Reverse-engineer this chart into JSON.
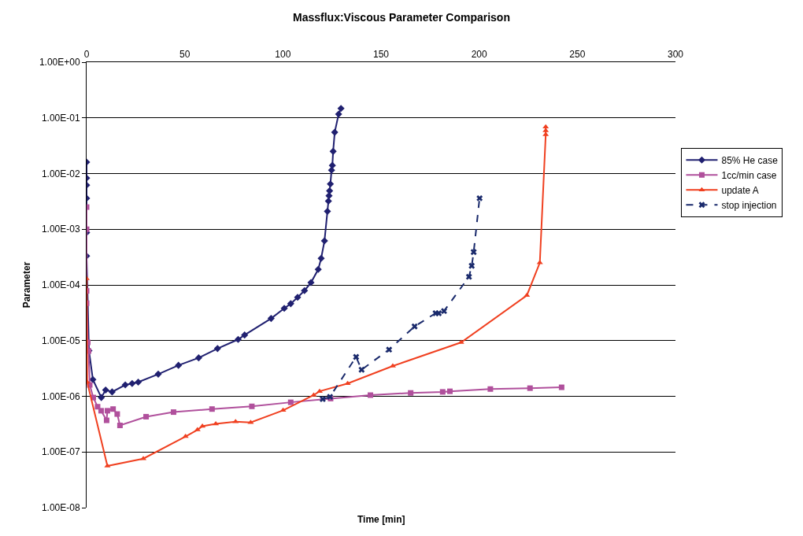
{
  "chart_data": {
    "type": "line",
    "title": "Massflux:Viscous Parameter Comparison",
    "xlabel": "Time [min]",
    "ylabel": "Parameter",
    "xlim": [
      0,
      300
    ],
    "xticks": [
      0,
      50,
      100,
      150,
      200,
      250,
      300
    ],
    "ylim": [
      1e-08,
      1
    ],
    "log": true,
    "yticks": [
      {
        "value": 1e-08,
        "label": "1.00E-08"
      },
      {
        "value": 1e-07,
        "label": "1.00E-07"
      },
      {
        "value": 1e-06,
        "label": "1.00E-06"
      },
      {
        "value": 1e-05,
        "label": "1.00E-05"
      },
      {
        "value": 0.0001,
        "label": "1.00E-04"
      },
      {
        "value": 0.001,
        "label": "1.00E-03"
      },
      {
        "value": 0.01,
        "label": "1.00E-02"
      },
      {
        "value": 0.1,
        "label": "1.00E-01"
      },
      {
        "value": 1,
        "label": "1.00E+00"
      }
    ],
    "grid": "y",
    "legend": "right",
    "series": [
      {
        "name": "85% He case",
        "color": "#202070",
        "marker": "diamond",
        "line_style": "solid",
        "x": [
          0,
          0,
          0,
          0,
          0,
          0,
          1.2,
          3.2,
          7.5,
          9.7,
          13,
          19.7,
          23.2,
          26.3,
          36.5,
          46.8,
          57.1,
          66.7,
          77.2,
          80.5,
          94,
          100.7,
          104,
          107.5,
          111,
          114.3,
          118,
          119.5,
          121.2,
          122.7,
          123.2,
          123.5,
          123.8,
          124.2,
          124.8,
          125.2,
          125.6,
          126.4,
          128.4,
          129.6
        ],
        "values": [
          0.016,
          0.0083,
          0.0062,
          0.0036,
          0.00087,
          0.00033,
          6.6e-06,
          2e-06,
          9.5e-07,
          1.3e-06,
          1.2e-06,
          1.6e-06,
          1.7e-06,
          1.8e-06,
          2.5e-06,
          3.6e-06,
          4.9e-06,
          7.2e-06,
          1.05e-05,
          1.26e-05,
          2.5e-05,
          3.8e-05,
          4.6e-05,
          6e-05,
          7.9e-05,
          0.00011,
          0.00019,
          0.0003,
          0.00062,
          0.0021,
          0.0032,
          0.004,
          0.0049,
          0.0065,
          0.0115,
          0.014,
          0.025,
          0.055,
          0.117,
          0.148
        ]
      },
      {
        "name": "1cc/min case",
        "color": "#b0509c",
        "marker": "square",
        "line_style": "solid",
        "x": [
          0,
          0,
          0,
          0,
          0.6,
          1,
          1.6,
          3.4,
          5.6,
          7.4,
          10.2,
          10.6,
          13.5,
          15.6,
          17,
          30.3,
          44.3,
          63.9,
          84.2,
          104,
          124.3,
          144.6,
          165.1,
          181.4,
          185.1,
          205.7,
          225.9,
          242
        ],
        "values": [
          0.0025,
          0.001,
          7.8e-05,
          4.7e-05,
          9.3e-06,
          6.5e-06,
          1.6e-06,
          9.5e-07,
          6.5e-07,
          5.5e-07,
          3.7e-07,
          5.5e-07,
          5.9e-07,
          4.8e-07,
          3e-07,
          4.3e-07,
          5.2e-07,
          5.9e-07,
          6.6e-07,
          7.8e-07,
          9.1e-07,
          1.05e-06,
          1.15e-06,
          1.2e-06,
          1.23e-06,
          1.35e-06,
          1.4e-06,
          1.45e-06
        ]
      },
      {
        "name": "update A",
        "color": "#f04020",
        "marker": "triangle",
        "line_style": "solid",
        "x": [
          0,
          0.3,
          10.6,
          28.9,
          50.4,
          56.5,
          59,
          65.8,
          75.9,
          83.6,
          100.1,
          115.7,
          118.7,
          133,
          156,
          190.8,
          224.3,
          230.9,
          233.9,
          233.9,
          233.9
        ],
        "values": [
          0.00013,
          1.8e-06,
          5.6e-08,
          7.6e-08,
          1.9e-07,
          2.5e-07,
          2.9e-07,
          3.2e-07,
          3.5e-07,
          3.4e-07,
          5.6e-07,
          1.05e-06,
          1.23e-06,
          1.7e-06,
          3.5e-06,
          9.3e-06,
          6.5e-05,
          0.00025,
          0.05,
          0.059,
          0.069
        ]
      },
      {
        "name": "stop injection",
        "color": "#1a2a6c",
        "marker": "cross",
        "line_style": "dashed",
        "x": [
          120.3,
          124,
          137.3,
          140.1,
          154.1,
          167.1,
          177.8,
          179.4,
          182.1,
          194.8,
          196.2,
          197.2,
          200.2
        ],
        "values": [
          8.9e-07,
          9.8e-07,
          5.1e-06,
          3e-06,
          6.9e-06,
          1.8e-05,
          3.1e-05,
          3.1e-05,
          3.4e-05,
          0.00014,
          0.00022,
          0.00039,
          0.0036
        ]
      }
    ]
  }
}
